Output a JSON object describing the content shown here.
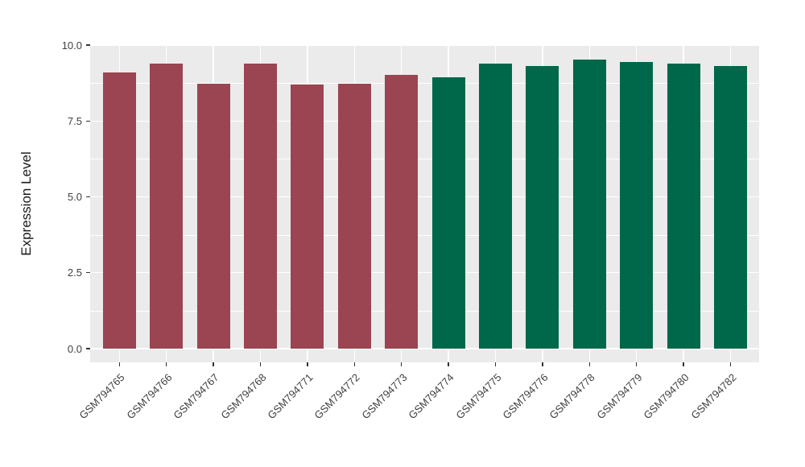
{
  "chart_data": {
    "type": "bar",
    "title": "",
    "xlabel": "",
    "ylabel": "Expression Level",
    "ylim": [
      0,
      10
    ],
    "ytick_labels": [
      "0.0",
      "2.5",
      "5.0",
      "7.5",
      "10.0"
    ],
    "ytick_values": [
      0,
      2.5,
      5,
      7.5,
      10
    ],
    "ytick_minor_values": [
      1.25,
      3.75,
      6.25,
      8.75
    ],
    "grid": true,
    "legend_position": "none",
    "panel_background_color": "#EBEBEB",
    "gridline_color": "#FFFFFF",
    "tick_color": "#333333",
    "axis_text_color": "#404040",
    "categories": [
      "GSM794765",
      "GSM794766",
      "GSM794767",
      "GSM794768",
      "GSM794771",
      "GSM794772",
      "GSM794773",
      "GSM794774",
      "GSM794775",
      "GSM794776",
      "GSM794778",
      "GSM794779",
      "GSM794780",
      "GSM794782"
    ],
    "values": [
      9.1,
      9.4,
      8.72,
      9.4,
      8.69,
      8.74,
      9.03,
      8.93,
      9.38,
      9.32,
      9.51,
      9.45,
      9.4,
      9.32
    ],
    "bar_colors": [
      "#9A4551",
      "#9A4551",
      "#9A4551",
      "#9A4551",
      "#9A4551",
      "#9A4551",
      "#9A4551",
      "#00684A",
      "#00684A",
      "#00684A",
      "#00684A",
      "#00684A",
      "#00684A",
      "#00684A"
    ],
    "group_colors": {
      "left_group_hex": "#9A4551",
      "right_group_hex": "#00684A"
    }
  }
}
